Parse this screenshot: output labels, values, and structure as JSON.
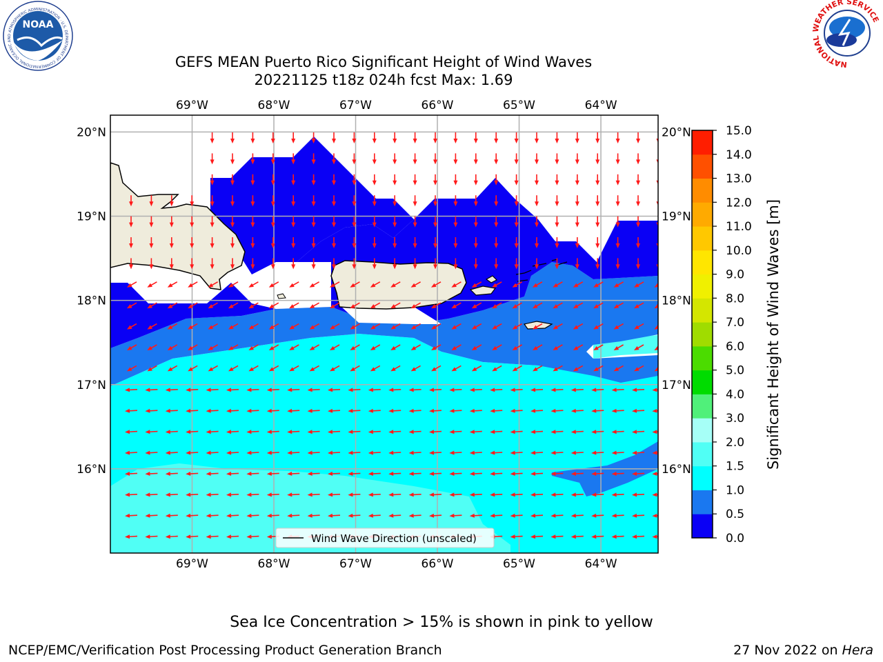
{
  "header": {
    "title_line1": "GEFS MEAN Puerto Rico Significant Height of Wind Waves",
    "title_line2": "20221125 t18z 024h fcst   Max: 1.69"
  },
  "logos": {
    "noaa_text": "NOAA",
    "noaa_ring_text": "NATIONAL OCEANIC AND ATMOSPHERIC ADMINISTRATION · U.S. DEPARTMENT OF COMMERCE",
    "nws_ring_text": "NATIONAL WEATHER SERVICE"
  },
  "map": {
    "lon_range": [
      -70.0,
      -63.3
    ],
    "lat_range": [
      15.0,
      20.2
    ],
    "lon_ticks": [
      {
        "value": -69,
        "label": "69°W"
      },
      {
        "value": -68,
        "label": "68°W"
      },
      {
        "value": -67,
        "label": "67°W"
      },
      {
        "value": -66,
        "label": "66°W"
      },
      {
        "value": -65,
        "label": "65°W"
      },
      {
        "value": -64,
        "label": "64°W"
      }
    ],
    "lat_ticks": [
      {
        "value": 20,
        "label": "20°N"
      },
      {
        "value": 19,
        "label": "19°N"
      },
      {
        "value": 18,
        "label": "18°N"
      },
      {
        "value": 17,
        "label": "17°N"
      },
      {
        "value": 16,
        "label": "16°N"
      }
    ],
    "grid": true,
    "legend_label": "Wind Wave Direction (unscaled)",
    "legend_position": "bottom-center",
    "colors": {
      "land": "#efecdc",
      "ocean_nodata": "#ffffff",
      "arrow": "#ff1a1a",
      "grid": "#b0b0b0"
    }
  },
  "colorbar": {
    "label": "Significant Height of Wind Waves [m]",
    "levels": [
      "0.0",
      "0.5",
      "1.0",
      "1.5",
      "2.0",
      "3.0",
      "4.0",
      "5.0",
      "6.0",
      "7.0",
      "8.0",
      "9.0",
      "10.0",
      "11.0",
      "12.0",
      "13.0",
      "14.0",
      "15.0"
    ],
    "colors": [
      "#0a00f5",
      "#1a78f0",
      "#00ffff",
      "#50fff5",
      "#a6fff7",
      "#50f07a",
      "#00dc00",
      "#4bdc00",
      "#a0dc00",
      "#d4e600",
      "#f0f000",
      "#ffe600",
      "#ffc800",
      "#ffaa00",
      "#ff8c00",
      "#ff5000",
      "#ff1e00"
    ]
  },
  "footer": {
    "caption": "Sea Ice Concentration > 15% is shown in pink to yellow",
    "left": "NCEP/EMC/Verification Post Processing Product Generation Branch",
    "right_date": "27 Nov 2022 on ",
    "right_host": "Hera"
  }
}
